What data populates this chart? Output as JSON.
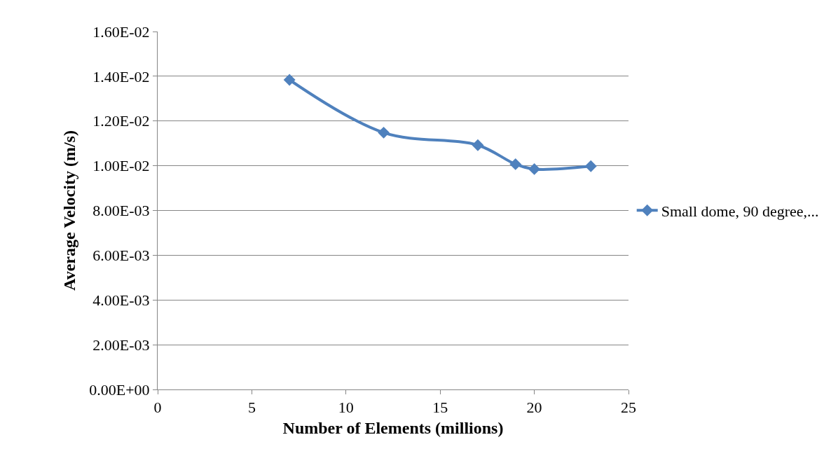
{
  "chart_data": {
    "type": "line",
    "xlabel": "Number of Elements (millions)",
    "ylabel": "Average Velocity (m/s)",
    "x": [
      7,
      12,
      17,
      19,
      20,
      23
    ],
    "series": [
      {
        "name": "Small dome, 90 degree,...",
        "color": "#4f81bd",
        "values": [
          0.01384,
          0.01148,
          0.01092,
          0.01007,
          0.00985,
          0.00998
        ]
      }
    ],
    "xlim": [
      0,
      25
    ],
    "xticks": [
      0,
      5,
      10,
      15,
      20,
      25
    ],
    "ylim": [
      0,
      0.016
    ],
    "yticks": [
      {
        "value": 0,
        "label": "0.00E+00"
      },
      {
        "value": 0.002,
        "label": "2.00E-03"
      },
      {
        "value": 0.004,
        "label": "4.00E-03"
      },
      {
        "value": 0.006,
        "label": "6.00E-03"
      },
      {
        "value": 0.008,
        "label": "8.00E-03"
      },
      {
        "value": 0.01,
        "label": "1.00E-02"
      },
      {
        "value": 0.012,
        "label": "1.20E-02"
      },
      {
        "value": 0.014,
        "label": "1.40E-02"
      },
      {
        "value": 0.016,
        "label": "1.60E-02"
      }
    ],
    "grid": "y",
    "legend": "right",
    "marker": "diamond",
    "line_style": "solid"
  }
}
